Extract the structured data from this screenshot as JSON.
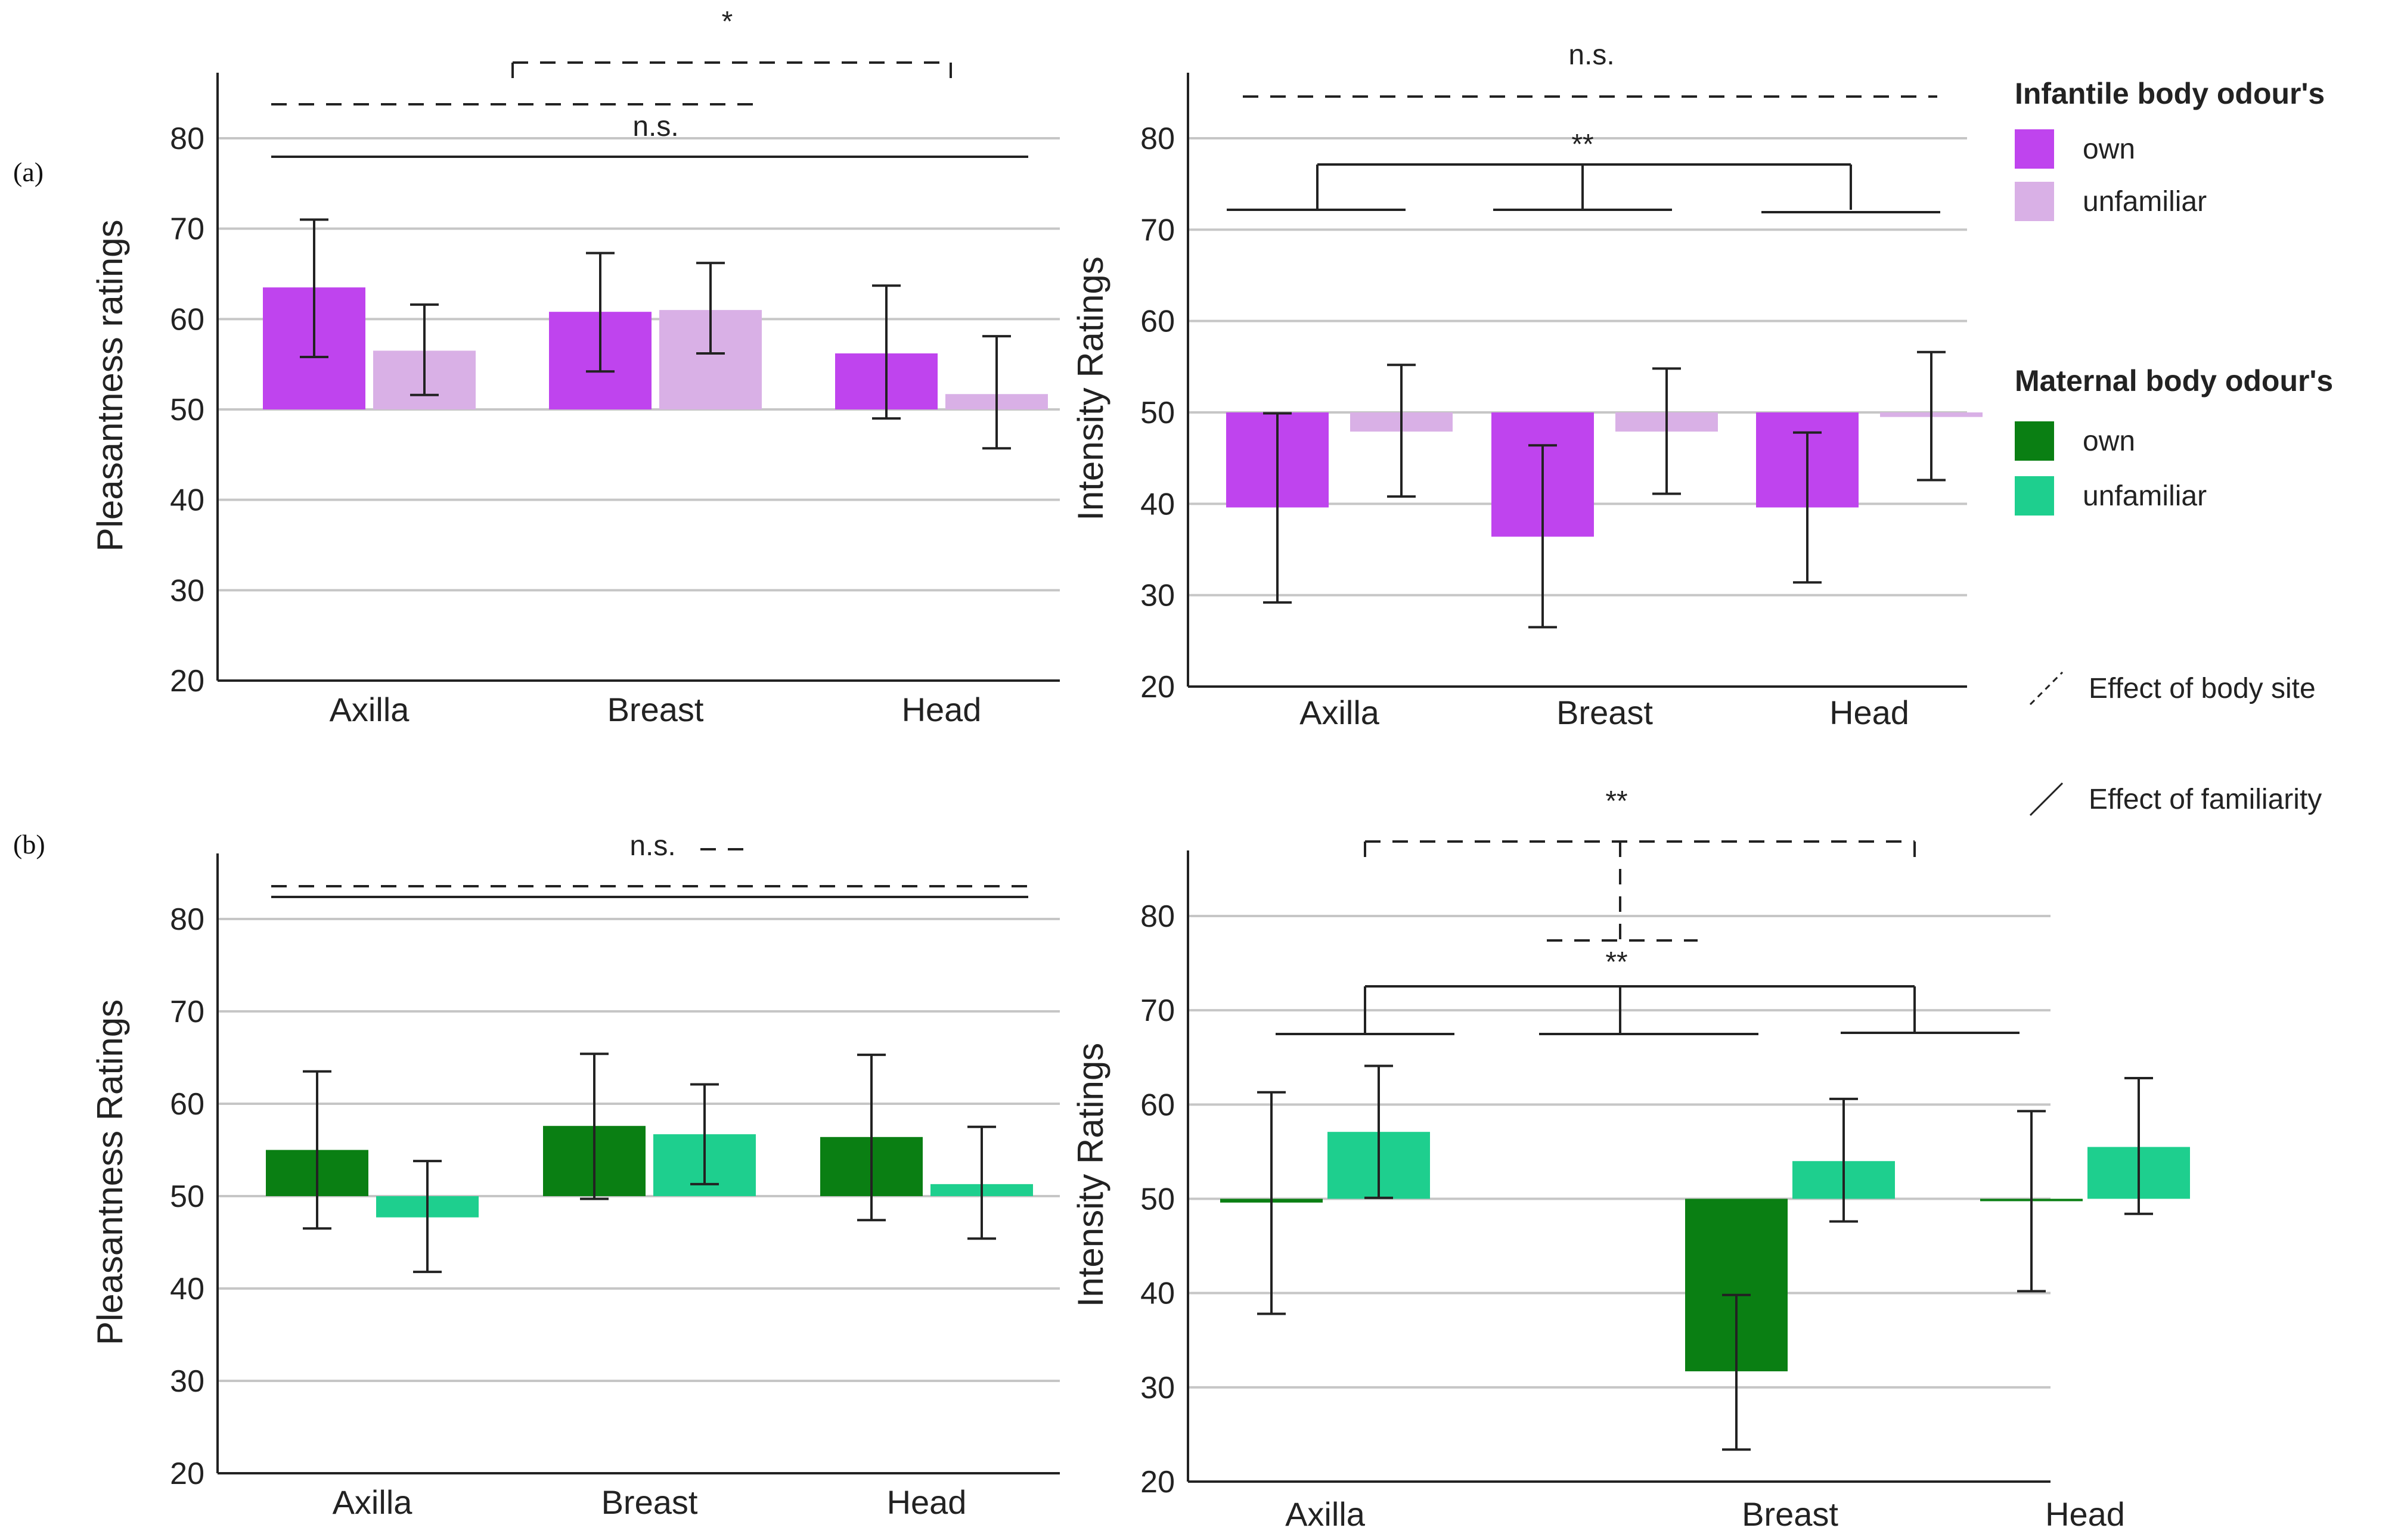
{
  "panel_labels": {
    "a": "(a)",
    "b": "(b)"
  },
  "colors": {
    "infant_own": "#bf44ee",
    "infant_unfamiliar": "#d9b0e6",
    "maternal_own": "#0a7f13",
    "maternal_unfamiliar": "#1ecf8e",
    "gridline": "#c6c6c6",
    "axis": "#222222"
  },
  "legend": {
    "infant_title": "Infantile body odour's",
    "maternal_title": "Maternal body odour's",
    "own_label": "own",
    "unfamiliar_label": "unfamiliar",
    "body_site_label": "Effect of body site",
    "familiarity_label": "Effect of familiarity"
  },
  "chart_data": [
    {
      "id": "a-pleasantness",
      "type": "bar",
      "baseline": 50,
      "ylabel": "Pleasantness ratings",
      "ylim": [
        20,
        85
      ],
      "yticks": [
        20,
        30,
        40,
        50,
        60,
        70,
        80
      ],
      "categories": [
        "Axilla",
        "Breast",
        "Head"
      ],
      "series": [
        {
          "name": "own",
          "values": [
            63.5,
            60.8,
            56.2
          ],
          "err_low": [
            55.8,
            54.2,
            49.0
          ],
          "err_high": [
            71.0,
            67.3,
            63.7
          ]
        },
        {
          "name": "unfamiliar",
          "values": [
            56.5,
            61.0,
            51.7
          ],
          "err_low": [
            51.6,
            56.2,
            45.7
          ],
          "err_high": [
            61.6,
            66.2,
            58.1
          ]
        }
      ],
      "annotations": [
        "*",
        "n.s."
      ],
      "grid": true
    },
    {
      "id": "a-intensity",
      "type": "bar",
      "baseline": 50,
      "ylabel": "Intensity Ratings",
      "ylim": [
        20,
        85
      ],
      "yticks": [
        20,
        30,
        40,
        50,
        60,
        70,
        80
      ],
      "categories": [
        "Axilla",
        "Breast",
        "Head"
      ],
      "series": [
        {
          "name": "own",
          "values": [
            39.6,
            36.4,
            39.6
          ],
          "err_low": [
            29.2,
            26.5,
            31.4
          ],
          "err_high": [
            49.9,
            46.4,
            47.8
          ]
        },
        {
          "name": "unfamiliar",
          "values": [
            47.9,
            47.9,
            49.5
          ],
          "err_low": [
            40.8,
            41.1,
            42.6
          ],
          "err_high": [
            55.2,
            54.8,
            56.6
          ]
        }
      ],
      "annotations": [
        "n.s.",
        "**"
      ],
      "grid": true
    },
    {
      "id": "b-pleasantness",
      "type": "bar",
      "baseline": 50,
      "ylabel": "Pleasantness Ratings",
      "ylim": [
        20,
        85
      ],
      "yticks": [
        20,
        30,
        40,
        50,
        60,
        70,
        80
      ],
      "categories": [
        "Axilla",
        "Breast",
        "Head"
      ],
      "series": [
        {
          "name": "own",
          "values": [
            55.0,
            57.6,
            56.4
          ],
          "err_low": [
            46.5,
            49.7,
            47.4
          ],
          "err_high": [
            63.5,
            65.4,
            65.3
          ]
        },
        {
          "name": "unfamiliar",
          "values": [
            47.7,
            56.7,
            51.3
          ],
          "err_low": [
            41.8,
            51.3,
            45.4
          ],
          "err_high": [
            53.8,
            62.1,
            57.5
          ]
        }
      ],
      "annotations": [
        "n.s."
      ],
      "grid": true
    },
    {
      "id": "b-intensity",
      "type": "bar",
      "baseline": 50,
      "ylabel": "Intensity Ratings",
      "ylim": [
        20,
        85
      ],
      "yticks": [
        20,
        30,
        40,
        50,
        60,
        70,
        80
      ],
      "categories": [
        "Axilla",
        "Breast",
        "Head"
      ],
      "series": [
        {
          "name": "own",
          "values": [
            49.6,
            31.7,
            49.8
          ],
          "err_low": [
            37.8,
            23.4,
            40.2
          ],
          "err_high": [
            61.3,
            39.8,
            59.3
          ]
        },
        {
          "name": "unfamiliar",
          "values": [
            57.1,
            54.0,
            55.5
          ],
          "err_low": [
            50.1,
            47.6,
            48.4
          ],
          "err_high": [
            64.1,
            60.6,
            62.8
          ]
        }
      ],
      "annotations": [
        "**",
        "**"
      ],
      "grid": true
    }
  ]
}
